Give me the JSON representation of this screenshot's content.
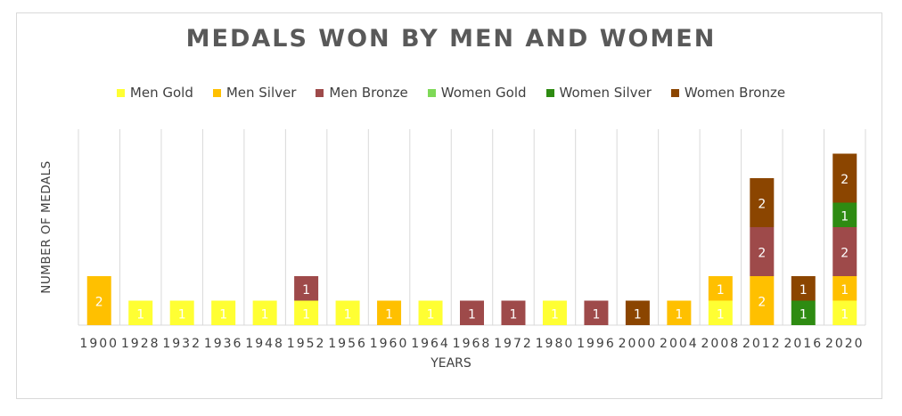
{
  "chart_data": {
    "type": "bar",
    "stacked": true,
    "title": "MEDALS WON BY MEN AND WOMEN",
    "xlabel": "YEARS",
    "ylabel": "NUMBER OF MEDALS",
    "ylim": [
      0,
      8
    ],
    "grid": "vertical",
    "legend_position": "top",
    "categories": [
      "1900",
      "1928",
      "1932",
      "1936",
      "1948",
      "1952",
      "1956",
      "1960",
      "1964",
      "1968",
      "1972",
      "1980",
      "1996",
      "2000",
      "2004",
      "2008",
      "2012",
      "2016",
      "2020"
    ],
    "series": [
      {
        "name": "Men Gold",
        "color": "#ffff33",
        "values": [
          0,
          1,
          1,
          1,
          1,
          1,
          1,
          0,
          1,
          0,
          0,
          1,
          0,
          0,
          0,
          1,
          0,
          0,
          1
        ]
      },
      {
        "name": "Men Silver",
        "color": "#ffc000",
        "values": [
          2,
          0,
          0,
          0,
          0,
          0,
          0,
          1,
          0,
          0,
          0,
          0,
          0,
          0,
          1,
          1,
          2,
          0,
          1
        ]
      },
      {
        "name": "Men Bronze",
        "color": "#9e4a4a",
        "values": [
          0,
          0,
          0,
          0,
          0,
          1,
          0,
          0,
          0,
          1,
          1,
          0,
          1,
          0,
          0,
          0,
          2,
          0,
          2
        ]
      },
      {
        "name": "Women Gold",
        "color": "#7ed957",
        "values": [
          0,
          0,
          0,
          0,
          0,
          0,
          0,
          0,
          0,
          0,
          0,
          0,
          0,
          0,
          0,
          0,
          0,
          0,
          0
        ]
      },
      {
        "name": "Women Silver",
        "color": "#2e8b12",
        "values": [
          0,
          0,
          0,
          0,
          0,
          0,
          0,
          0,
          0,
          0,
          0,
          0,
          0,
          0,
          0,
          0,
          0,
          1,
          1
        ]
      },
      {
        "name": "Women Bronze",
        "color": "#8b4500",
        "values": [
          0,
          0,
          0,
          0,
          0,
          0,
          0,
          0,
          0,
          0,
          0,
          0,
          0,
          1,
          0,
          0,
          2,
          1,
          2
        ]
      }
    ]
  }
}
